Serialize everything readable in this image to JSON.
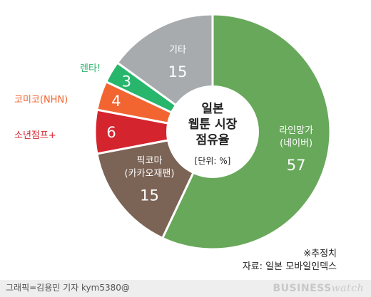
{
  "chart_data": {
    "type": "pie",
    "title": "일본 웹툰 시장 점유율",
    "unit": "[단위: %]",
    "slices": [
      {
        "label": "라인망가 (네이버)",
        "label_lines": [
          "라인망가",
          "(네이버)"
        ],
        "value": 57,
        "color": "#67a85a"
      },
      {
        "label": "픽코마 (카카오재팬)",
        "label_lines": [
          "픽코마",
          "(카카오재팬)"
        ],
        "value": 15,
        "color": "#7b6355"
      },
      {
        "label": "소년점프+",
        "label_lines": [
          "소년점프+"
        ],
        "value": 6,
        "color": "#d4242e"
      },
      {
        "label": "코미코(NHN)",
        "label_lines": [
          "코미코(NHN)"
        ],
        "value": 4,
        "color": "#f26531"
      },
      {
        "label": "렌타!",
        "label_lines": [
          "렌타!"
        ],
        "value": 3,
        "color": "#28b66c"
      },
      {
        "label": "기타",
        "label_lines": [
          "기타"
        ],
        "value": 15,
        "color": "#a8abae"
      }
    ]
  },
  "center_title_lines": [
    "일본",
    "웹툰 시장",
    "점유율"
  ],
  "unit_text": "[단위: %]",
  "note": "※추정치",
  "source": "자료: 일본 모바일인덱스",
  "credit": "그래픽=김용민 기자 kym5380@",
  "brand_bold": "BUSINESS",
  "brand_italic": "watch"
}
